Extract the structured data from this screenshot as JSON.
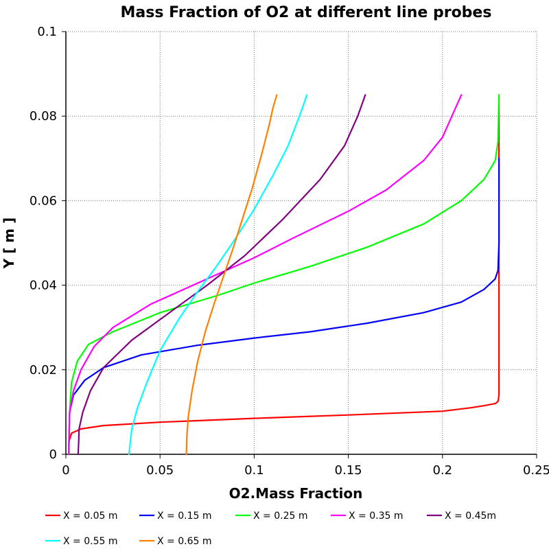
{
  "chart_data": {
    "type": "line",
    "title": "Mass Fraction of O2 at different line probes",
    "xlabel": "O2.Mass Fraction",
    "ylabel": "Y [ m ]",
    "xlim": [
      0,
      0.25
    ],
    "ylim": [
      0,
      0.1
    ],
    "xticks": [
      0,
      0.05,
      0.1,
      0.15,
      0.2,
      0.25
    ],
    "xtick_labels": [
      "0",
      "0.05",
      "0.1",
      "0.15",
      "0.2",
      "0.25"
    ],
    "yticks": [
      0,
      0.02,
      0.04,
      0.06,
      0.08,
      0.1
    ],
    "ytick_labels": [
      "0",
      "0.02",
      "0.04",
      "0.06",
      "0.08",
      "0.1"
    ],
    "grid": true,
    "legend_position": "bottom",
    "series": [
      {
        "name": "X = 0.05 m",
        "color": "#ff0000",
        "points": [
          [
            0.0015,
            0
          ],
          [
            0.0016,
            0.003
          ],
          [
            0.003,
            0.005
          ],
          [
            0.008,
            0.006
          ],
          [
            0.02,
            0.0068
          ],
          [
            0.05,
            0.0076
          ],
          [
            0.1,
            0.0085
          ],
          [
            0.15,
            0.0093
          ],
          [
            0.2,
            0.0102
          ],
          [
            0.215,
            0.011
          ],
          [
            0.222,
            0.0115
          ],
          [
            0.228,
            0.012
          ],
          [
            0.2295,
            0.0125
          ],
          [
            0.23,
            0.014
          ],
          [
            0.23,
            0.04
          ],
          [
            0.23,
            0.085
          ]
        ]
      },
      {
        "name": "X = 0.15 m",
        "color": "#0000ff",
        "points": [
          [
            0.0015,
            0
          ],
          [
            0.0018,
            0.005
          ],
          [
            0.002,
            0.01
          ],
          [
            0.004,
            0.014
          ],
          [
            0.01,
            0.0175
          ],
          [
            0.02,
            0.0205
          ],
          [
            0.04,
            0.0235
          ],
          [
            0.07,
            0.0258
          ],
          [
            0.1,
            0.0275
          ],
          [
            0.13,
            0.029
          ],
          [
            0.16,
            0.031
          ],
          [
            0.19,
            0.0335
          ],
          [
            0.21,
            0.036
          ],
          [
            0.222,
            0.039
          ],
          [
            0.228,
            0.0415
          ],
          [
            0.2295,
            0.0435
          ],
          [
            0.23,
            0.05
          ],
          [
            0.23,
            0.07
          ]
        ]
      },
      {
        "name": "X = 0.25 m",
        "color": "#00ff00",
        "points": [
          [
            0.0015,
            0
          ],
          [
            0.0017,
            0.005
          ],
          [
            0.002,
            0.01
          ],
          [
            0.003,
            0.017
          ],
          [
            0.006,
            0.022
          ],
          [
            0.012,
            0.026
          ],
          [
            0.025,
            0.029
          ],
          [
            0.05,
            0.0335
          ],
          [
            0.08,
            0.0375
          ],
          [
            0.1,
            0.0405
          ],
          [
            0.13,
            0.0445
          ],
          [
            0.16,
            0.049
          ],
          [
            0.19,
            0.0545
          ],
          [
            0.21,
            0.06
          ],
          [
            0.222,
            0.065
          ],
          [
            0.228,
            0.0695
          ],
          [
            0.2295,
            0.074
          ],
          [
            0.23,
            0.085
          ]
        ]
      },
      {
        "name": "X = 0.35 m",
        "color": "#ff00ff",
        "points": [
          [
            0.0015,
            0
          ],
          [
            0.0017,
            0.005
          ],
          [
            0.002,
            0.01
          ],
          [
            0.004,
            0.015
          ],
          [
            0.008,
            0.02
          ],
          [
            0.015,
            0.0255
          ],
          [
            0.025,
            0.03
          ],
          [
            0.045,
            0.0355
          ],
          [
            0.07,
            0.0405
          ],
          [
            0.1,
            0.0465
          ],
          [
            0.12,
            0.051
          ],
          [
            0.15,
            0.0575
          ],
          [
            0.17,
            0.0625
          ],
          [
            0.19,
            0.0695
          ],
          [
            0.2,
            0.075
          ],
          [
            0.205,
            0.08
          ],
          [
            0.21,
            0.085
          ]
        ]
      },
      {
        "name": "X = 0.45m",
        "color": "#800080",
        "points": [
          [
            0.0065,
            0
          ],
          [
            0.0068,
            0.003
          ],
          [
            0.007,
            0.006
          ],
          [
            0.009,
            0.01
          ],
          [
            0.013,
            0.015
          ],
          [
            0.02,
            0.0205
          ],
          [
            0.035,
            0.027
          ],
          [
            0.055,
            0.0335
          ],
          [
            0.075,
            0.04
          ],
          [
            0.095,
            0.047
          ],
          [
            0.115,
            0.0555
          ],
          [
            0.135,
            0.065
          ],
          [
            0.148,
            0.073
          ],
          [
            0.155,
            0.08
          ],
          [
            0.159,
            0.085
          ]
        ]
      },
      {
        "name": "X = 0.55 m",
        "color": "#00ffff",
        "points": [
          [
            0.0335,
            0
          ],
          [
            0.034,
            0.002
          ],
          [
            0.035,
            0.006
          ],
          [
            0.038,
            0.011
          ],
          [
            0.043,
            0.017
          ],
          [
            0.05,
            0.0245
          ],
          [
            0.06,
            0.032
          ],
          [
            0.07,
            0.0385
          ],
          [
            0.08,
            0.0445
          ],
          [
            0.09,
            0.051
          ],
          [
            0.1,
            0.058
          ],
          [
            0.11,
            0.066
          ],
          [
            0.118,
            0.073
          ],
          [
            0.124,
            0.08
          ],
          [
            0.128,
            0.085
          ]
        ]
      },
      {
        "name": "X = 0.65 m",
        "color": "#ff8000",
        "points": [
          [
            0.064,
            0
          ],
          [
            0.0642,
            0.004
          ],
          [
            0.065,
            0.009
          ],
          [
            0.067,
            0.015
          ],
          [
            0.07,
            0.022
          ],
          [
            0.074,
            0.029
          ],
          [
            0.079,
            0.036
          ],
          [
            0.084,
            0.0425
          ],
          [
            0.089,
            0.049
          ],
          [
            0.094,
            0.056
          ],
          [
            0.099,
            0.063
          ],
          [
            0.104,
            0.071
          ],
          [
            0.108,
            0.078
          ],
          [
            0.11,
            0.082
          ],
          [
            0.112,
            0.085
          ]
        ]
      }
    ]
  }
}
